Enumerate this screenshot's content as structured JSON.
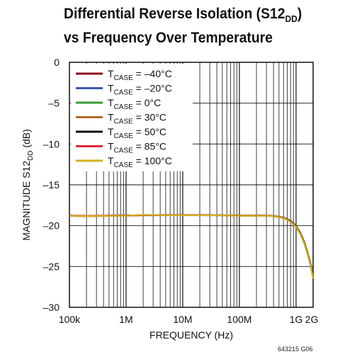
{
  "title_line1": "Differential Reverse Isolation (S12",
  "title_sub": "DD",
  "title_close": ")",
  "title_line2": "vs Frequency Over Temperature",
  "figure_id": "643215 G06",
  "chart_data": {
    "type": "line",
    "title": "Differential Reverse Isolation (S12DD) vs Frequency Over Temperature",
    "xlabel": "FREQUENCY (Hz)",
    "ylabel_main": "MAGNITUDE S12",
    "ylabel_sub": "DD",
    "ylabel_unit": " (dB)",
    "x_scale": "log",
    "xlim": [
      100000,
      2000000000
    ],
    "ylim": [
      -30,
      0
    ],
    "grid": true,
    "legend_position": "top-left",
    "x_ticks": [
      {
        "value": 100000,
        "label": "100k"
      },
      {
        "value": 1000000,
        "label": "1M"
      },
      {
        "value": 10000000,
        "label": "10M"
      },
      {
        "value": 100000000,
        "label": "100M"
      },
      {
        "value": 1000000000,
        "label": "1G"
      },
      {
        "value": 2000000000,
        "label": "2G"
      }
    ],
    "y_ticks": [
      {
        "value": 0,
        "label": "0"
      },
      {
        "value": -5,
        "label": "–5"
      },
      {
        "value": -10,
        "label": "–10"
      },
      {
        "value": -15,
        "label": "–15"
      },
      {
        "value": -20,
        "label": "–20"
      },
      {
        "value": -25,
        "label": "–25"
      },
      {
        "value": -30,
        "label": "–30"
      }
    ],
    "x": [
      100000,
      200000,
      500000,
      1000000,
      2000000,
      5000000,
      10000000,
      20000000,
      50000000,
      100000000,
      200000000,
      300000000,
      400000000,
      500000000,
      600000000,
      700000000,
      800000000,
      900000000,
      1000000000,
      1200000000,
      1400000000,
      1600000000,
      1800000000,
      2000000000
    ],
    "series": [
      {
        "label_sub": "CASE",
        "label_rest": " = –40°C",
        "color": "#8b0a1e",
        "values": [
          -18.75,
          -18.8,
          -18.75,
          -18.75,
          -18.7,
          -18.7,
          -18.7,
          -18.7,
          -18.72,
          -18.75,
          -18.75,
          -18.75,
          -18.8,
          -18.9,
          -19.0,
          -19.2,
          -19.4,
          -19.7,
          -20.0,
          -20.9,
          -22.0,
          -23.3,
          -24.6,
          -26.2
        ]
      },
      {
        "label_sub": "CASE",
        "label_rest": " = –20°C",
        "color": "#3a5bb0",
        "values": [
          -18.8,
          -18.85,
          -18.8,
          -18.78,
          -18.72,
          -18.72,
          -18.72,
          -18.72,
          -18.74,
          -18.78,
          -18.78,
          -18.78,
          -18.83,
          -18.93,
          -19.05,
          -19.25,
          -19.45,
          -19.75,
          -20.05,
          -20.95,
          -22.05,
          -23.35,
          -24.7,
          -26.3
        ]
      },
      {
        "label_sub": "CASE",
        "label_rest": " = 0°C",
        "color": "#3a9a3a",
        "values": [
          -18.78,
          -18.82,
          -18.78,
          -18.76,
          -18.71,
          -18.71,
          -18.71,
          -18.71,
          -18.73,
          -18.77,
          -18.77,
          -18.77,
          -18.82,
          -18.92,
          -19.03,
          -19.23,
          -19.43,
          -19.72,
          -20.02,
          -20.92,
          -22.02,
          -23.3,
          -24.65,
          -26.25
        ]
      },
      {
        "label_sub": "CASE",
        "label_rest": " = 30°C",
        "color": "#b06a2a",
        "values": [
          -18.82,
          -18.86,
          -18.82,
          -18.8,
          -18.75,
          -18.74,
          -18.74,
          -18.74,
          -18.76,
          -18.8,
          -18.8,
          -18.8,
          -18.86,
          -18.98,
          -19.1,
          -19.32,
          -19.55,
          -19.85,
          -20.2,
          -21.1,
          -22.25,
          -23.55,
          -24.9,
          -26.5
        ]
      },
      {
        "label_sub": "CASE",
        "label_rest": " = 50°C",
        "color": "#111111",
        "values": [
          -18.76,
          -18.81,
          -18.77,
          -18.75,
          -18.7,
          -18.7,
          -18.7,
          -18.7,
          -18.72,
          -18.76,
          -18.76,
          -18.76,
          -18.82,
          -18.92,
          -19.04,
          -19.24,
          -19.45,
          -19.75,
          -20.08,
          -21.0,
          -22.1,
          -23.4,
          -24.75,
          -26.35
        ]
      },
      {
        "label_sub": "CASE",
        "label_rest": " = 85°C",
        "color": "#e0283a",
        "values": [
          -18.77,
          -18.8,
          -18.76,
          -18.76,
          -18.71,
          -18.71,
          -18.71,
          -18.71,
          -18.73,
          -18.77,
          -18.77,
          -18.77,
          -18.83,
          -18.94,
          -19.06,
          -19.28,
          -19.5,
          -19.8,
          -20.12,
          -21.05,
          -22.18,
          -23.48,
          -24.82,
          -26.4
        ]
      },
      {
        "label_sub": "CASE",
        "label_rest": " = 100°C",
        "color": "#d4b21a",
        "values": [
          -18.79,
          -18.83,
          -18.79,
          -18.78,
          -18.66,
          -18.72,
          -18.72,
          -18.72,
          -18.74,
          -18.78,
          -18.78,
          -18.78,
          -18.84,
          -18.96,
          -19.08,
          -19.3,
          -19.52,
          -19.83,
          -20.15,
          -21.08,
          -22.2,
          -23.5,
          -24.85,
          -26.45
        ]
      }
    ]
  }
}
